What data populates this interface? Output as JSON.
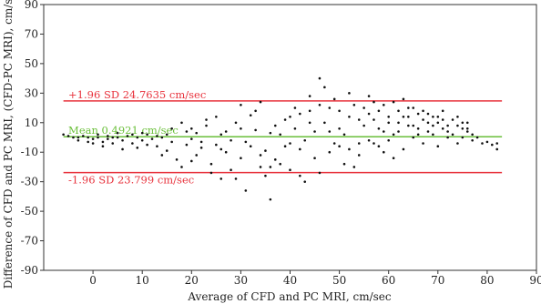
{
  "chart_data": {
    "type": "scatter",
    "title": "",
    "xlabel": "Average of CFD and PC MRI, cm/sec",
    "ylabel": "Difference of CFD and PC MRI, (CFD-PC MRI), cm/sec",
    "xlim": [
      -10,
      90
    ],
    "ylim": [
      -90,
      90
    ],
    "xticks": [
      0,
      10,
      20,
      30,
      40,
      50,
      60,
      70,
      80,
      90
    ],
    "yticks": [
      -90,
      -70,
      -50,
      -30,
      -10,
      10,
      30,
      50,
      70,
      90
    ],
    "grid": false,
    "reference_lines": [
      {
        "label": "+1.96 SD 24.7635 cm/sec",
        "y": 24.7635,
        "color": "#e8323c"
      },
      {
        "label": "Mean 0.4921 cm/sec",
        "y": 0.4921,
        "color": "#6abf3a"
      },
      {
        "label": "-1.96 SD 23.799 cm/sec",
        "y": -23.799,
        "color": "#e8323c"
      }
    ],
    "point_color": "#111111",
    "points": [
      [
        -5,
        1
      ],
      [
        -4,
        0
      ],
      [
        -3,
        -2
      ],
      [
        -2,
        1
      ],
      [
        -1,
        0
      ],
      [
        0,
        -1
      ],
      [
        1,
        0
      ],
      [
        2,
        -3
      ],
      [
        3,
        1
      ],
      [
        4,
        0
      ],
      [
        -3,
        0
      ],
      [
        -1,
        -3
      ],
      [
        1,
        2
      ],
      [
        3,
        -1
      ],
      [
        5,
        0
      ],
      [
        6,
        -2
      ],
      [
        7,
        1
      ],
      [
        8,
        -4
      ],
      [
        9,
        0
      ],
      [
        10,
        -2
      ],
      [
        2,
        -6
      ],
      [
        4,
        -4
      ],
      [
        6,
        -8
      ],
      [
        8,
        2
      ],
      [
        10,
        3
      ],
      [
        11,
        -5
      ],
      [
        12,
        -1
      ],
      [
        13,
        -6
      ],
      [
        14,
        0
      ],
      [
        15,
        2
      ],
      [
        11,
        2
      ],
      [
        13,
        1
      ],
      [
        15,
        -9
      ],
      [
        16,
        -3
      ],
      [
        17,
        -15
      ],
      [
        18,
        10
      ],
      [
        19,
        -5
      ],
      [
        20,
        -1
      ],
      [
        21,
        3
      ],
      [
        22,
        -7
      ],
      [
        18,
        -20
      ],
      [
        19,
        4
      ],
      [
        20,
        6
      ],
      [
        21,
        -12
      ],
      [
        22,
        -3
      ],
      [
        23,
        8
      ],
      [
        24,
        -18
      ],
      [
        25,
        -5
      ],
      [
        26,
        2
      ],
      [
        27,
        -10
      ],
      [
        23,
        12
      ],
      [
        24,
        -24
      ],
      [
        25,
        14
      ],
      [
        26,
        -8
      ],
      [
        27,
        4
      ],
      [
        28,
        -22
      ],
      [
        29,
        10
      ],
      [
        30,
        -14
      ],
      [
        31,
        -3
      ],
      [
        32,
        15
      ],
      [
        28,
        -2
      ],
      [
        29,
        -28
      ],
      [
        30,
        6
      ],
      [
        31,
        -36
      ],
      [
        32,
        -6
      ],
      [
        33,
        18
      ],
      [
        34,
        -12
      ],
      [
        35,
        -9
      ],
      [
        36,
        3
      ],
      [
        37,
        -15
      ],
      [
        33,
        5
      ],
      [
        34,
        -20
      ],
      [
        35,
        -26
      ],
      [
        36,
        -42
      ],
      [
        37,
        8
      ],
      [
        38,
        -18
      ],
      [
        39,
        12
      ],
      [
        40,
        -4
      ],
      [
        41,
        20
      ],
      [
        42,
        -8
      ],
      [
        38,
        2
      ],
      [
        39,
        -6
      ],
      [
        40,
        -22
      ],
      [
        41,
        6
      ],
      [
        42,
        16
      ],
      [
        43,
        -30
      ],
      [
        44,
        28
      ],
      [
        45,
        4
      ],
      [
        46,
        40
      ],
      [
        47,
        34
      ],
      [
        43,
        -2
      ],
      [
        44,
        18
      ],
      [
        45,
        -14
      ],
      [
        46,
        22
      ],
      [
        47,
        10
      ],
      [
        48,
        -10
      ],
      [
        49,
        26
      ],
      [
        50,
        6
      ],
      [
        51,
        -18
      ],
      [
        52,
        14
      ],
      [
        48,
        4
      ],
      [
        49,
        -4
      ],
      [
        50,
        18
      ],
      [
        51,
        2
      ],
      [
        52,
        -8
      ],
      [
        53,
        22
      ],
      [
        54,
        -12
      ],
      [
        55,
        8
      ],
      [
        56,
        16
      ],
      [
        57,
        -4
      ],
      [
        53,
        -20
      ],
      [
        54,
        12
      ],
      [
        55,
        20
      ],
      [
        56,
        -2
      ],
      [
        57,
        24
      ],
      [
        58,
        6
      ],
      [
        59,
        -10
      ],
      [
        60,
        14
      ],
      [
        61,
        2
      ],
      [
        62,
        18
      ],
      [
        58,
        -6
      ],
      [
        59,
        22
      ],
      [
        60,
        10
      ],
      [
        61,
        -14
      ],
      [
        62,
        4
      ],
      [
        63,
        26
      ],
      [
        64,
        8
      ],
      [
        65,
        0
      ],
      [
        66,
        16
      ],
      [
        67,
        12
      ],
      [
        63,
        -8
      ],
      [
        64,
        14
      ],
      [
        65,
        20
      ],
      [
        66,
        6
      ],
      [
        67,
        -4
      ],
      [
        68,
        10
      ],
      [
        69,
        2
      ],
      [
        70,
        14
      ],
      [
        71,
        6
      ],
      [
        72,
        0
      ],
      [
        68,
        16
      ],
      [
        69,
        8
      ],
      [
        70,
        -6
      ],
      [
        71,
        12
      ],
      [
        72,
        4
      ],
      [
        73,
        2
      ],
      [
        74,
        8
      ],
      [
        75,
        0
      ],
      [
        76,
        4
      ],
      [
        77,
        -2
      ],
      [
        74,
        -4
      ],
      [
        75,
        6
      ],
      [
        76,
        10
      ],
      [
        77,
        2
      ],
      [
        78,
        0
      ],
      [
        79,
        -4
      ],
      [
        80,
        -3
      ],
      [
        81,
        -5
      ],
      [
        82,
        -8
      ],
      [
        82,
        -4
      ],
      [
        -6,
        2
      ],
      [
        0,
        -4
      ],
      [
        5,
        3
      ],
      [
        9,
        -7
      ],
      [
        14,
        -12
      ],
      [
        16,
        6
      ],
      [
        20,
        -16
      ],
      [
        26,
        -28
      ],
      [
        30,
        22
      ],
      [
        34,
        24
      ],
      [
        36,
        -20
      ],
      [
        40,
        14
      ],
      [
        42,
        -26
      ],
      [
        44,
        10
      ],
      [
        46,
        -24
      ],
      [
        48,
        20
      ],
      [
        50,
        -6
      ],
      [
        52,
        30
      ],
      [
        54,
        -4
      ],
      [
        56,
        28
      ],
      [
        57,
        12
      ],
      [
        58,
        18
      ],
      [
        59,
        4
      ],
      [
        60,
        -2
      ],
      [
        61,
        24
      ],
      [
        62,
        10
      ],
      [
        63,
        14
      ],
      [
        64,
        20
      ],
      [
        65,
        8
      ],
      [
        66,
        2
      ],
      [
        67,
        18
      ],
      [
        68,
        4
      ],
      [
        69,
        14
      ],
      [
        70,
        10
      ],
      [
        71,
        18
      ],
      [
        72,
        8
      ],
      [
        73,
        12
      ],
      [
        74,
        14
      ],
      [
        75,
        10
      ],
      [
        76,
        6
      ]
    ]
  }
}
